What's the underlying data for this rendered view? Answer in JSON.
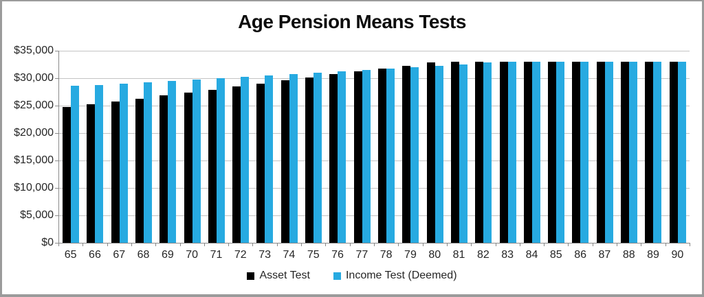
{
  "chart_data": {
    "type": "bar",
    "title": "Age Pension Means Tests",
    "categories": [
      "65",
      "66",
      "67",
      "68",
      "69",
      "70",
      "71",
      "72",
      "73",
      "74",
      "75",
      "76",
      "77",
      "78",
      "79",
      "80",
      "81",
      "82",
      "83",
      "84",
      "85",
      "86",
      "87",
      "88",
      "89",
      "90"
    ],
    "series": [
      {
        "name": "Asset Test",
        "color": "#000000",
        "values": [
          24700,
          25200,
          25700,
          26300,
          26900,
          27400,
          27900,
          28500,
          29000,
          29600,
          30100,
          30700,
          31200,
          31700,
          32300,
          32900,
          33000,
          33000,
          33000,
          33000,
          33000,
          33000,
          33000,
          33000,
          33000,
          33000
        ]
      },
      {
        "name": "Income Test (Deemed)",
        "color": "#27AAE1",
        "values": [
          28600,
          28800,
          29000,
          29300,
          29500,
          29800,
          30000,
          30200,
          30500,
          30800,
          31000,
          31300,
          31500,
          31800,
          32000,
          32300,
          32500,
          32900,
          33000,
          33000,
          33000,
          33000,
          33000,
          33000,
          33000,
          33000
        ]
      }
    ],
    "xlabel": "",
    "ylabel": "",
    "ylim": [
      0,
      35000
    ],
    "y_tick_step": 5000,
    "y_tick_labels": [
      "$0",
      "$5,000",
      "$10,000",
      "$15,000",
      "$20,000",
      "$25,000",
      "$30,000",
      "$35,000"
    ],
    "grid": true,
    "legend_position": "bottom",
    "colors": {
      "gridline": "#C3C3C3",
      "axis": "#898989",
      "tick_label": "#262626",
      "title": "#0D0D0D",
      "background": "#FFFFFF",
      "frame_border": "#9B9B9B"
    }
  }
}
